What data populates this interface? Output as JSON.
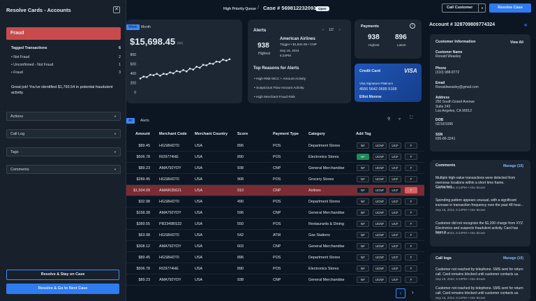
{
  "left_panel": {
    "title": "Resolve Cards - Accounts",
    "disposition": "Fraud",
    "tagged_header": "Tagged Transactions",
    "tagged_count": "6",
    "tag_rows": [
      {
        "label": "• Not Fraud",
        "count": "2"
      },
      {
        "label": "• Unconfirmed - Not Fraud",
        "count": "1"
      },
      {
        "label": "• Fraud",
        "count": "3"
      }
    ],
    "note": "Great job! You've identified $1,793.54 in potential fraudulent activity.",
    "dropdowns": [
      "Actions",
      "Call Log",
      "Tags",
      "Comments"
    ],
    "btn_stay": "Resolve & Stay on Case",
    "btn_next": "Resolve & Go to Next Case"
  },
  "header": {
    "queue": "High Priority Queue",
    "sep": "/",
    "case": "Case # 569812232093",
    "status": "Open",
    "call_customer": "Call Customer",
    "resolve_case": "Resolve Case"
  },
  "spend": {
    "tab_week": "Week",
    "tab_month": "Month",
    "amount": "$15,698.45",
    "count": "(54)"
  },
  "chart_data": {
    "type": "line",
    "title": "",
    "xlabel": "",
    "ylabel": "",
    "ylim": [
      0,
      800
    ],
    "yticks": [
      "800",
      "600",
      "400",
      "200",
      "0"
    ],
    "values": [
      290,
      330,
      320,
      370,
      360,
      390,
      350,
      390,
      380,
      420,
      400,
      450,
      430,
      470,
      440,
      500,
      480,
      540,
      520,
      580,
      570,
      610,
      600,
      650,
      640,
      690,
      670,
      700
    ]
  },
  "alerts": {
    "title": "Alerts",
    "pager": "1/2",
    "score": "938",
    "score_label": "Highest",
    "merchant": "American Airlines",
    "trigger": "Trigger  •  $1,504.09  •  CNP",
    "date": "Sep 16, 2024",
    "time": "5:24PM",
    "reasons_title": "Top Reasons for Alerts",
    "reasons": [
      "• High-Risk MCC + Amount Activity",
      "• Suspicious Flow Amount Activity",
      "• High Merchant Fraud Risk"
    ]
  },
  "payments": {
    "title": "Payments",
    "highest": "938",
    "highest_label": "Highest",
    "latest": "896",
    "latest_label": "Latest"
  },
  "credit_card": {
    "label": "Credit Card",
    "brand": "VISA",
    "product": "Visa Signature Platinum",
    "number": "4556 5642 0695 5168",
    "holder": "Elliot Monroe"
  },
  "table": {
    "tab_all": "All",
    "tab_alerts": "Alerts",
    "headers": [
      "Amount",
      "Merchant Code",
      "Merchant Country",
      "Score",
      "Payment Type",
      "Category",
      "Add Tag"
    ],
    "tags": [
      "NF",
      "UCNF",
      "UCF",
      "F"
    ],
    "rows": [
      {
        "amount": "$89.45",
        "code": "HGS8HDT0",
        "country": "USA",
        "score": "896",
        "type": "POS",
        "category": "Department Stores",
        "tag": ""
      },
      {
        "amount": "$506.78",
        "code": "RI29774HE",
        "country": "USA",
        "score": "890",
        "type": "POS",
        "category": "Electronics Stores",
        "tag": "NF"
      },
      {
        "amount": "$89.23",
        "code": "AMA792YDY",
        "country": "USA",
        "score": "938",
        "type": "CNP",
        "category": "General Merchandise",
        "tag": ""
      },
      {
        "amount": "$289.45",
        "code": "HGS8HDT0",
        "country": "USA",
        "score": "908",
        "type": "POS",
        "category": "Grocery Stores",
        "tag": ""
      },
      {
        "amount": "$1,504.09",
        "code": "AMAIR35621",
        "country": "USA",
        "score": "910",
        "type": "CNP",
        "category": "Airlines",
        "tag": "F"
      },
      {
        "amount": "$32.98",
        "code": "HGS8HDT0",
        "country": "USA",
        "score": "490",
        "type": "POS",
        "category": "Department Stores",
        "tag": ""
      },
      {
        "amount": "$158.38",
        "code": "AMA792YDY",
        "country": "USA",
        "score": "596",
        "type": "CNP",
        "category": "General Merchandise",
        "tag": ""
      },
      {
        "amount": "$389.55",
        "code": "PB2349BS32",
        "country": "USA",
        "score": "550",
        "type": "POS",
        "category": "Restaurants & Dining",
        "tag": ""
      },
      {
        "amount": "$63.98",
        "code": "HGS8HDT0",
        "country": "USA",
        "score": "542",
        "type": "ATM",
        "category": "Gas Stations",
        "tag": ""
      },
      {
        "amount": "$308.12",
        "code": "AMA792YDY",
        "country": "USA",
        "score": "603",
        "type": "CNP",
        "category": "General Merchandise",
        "tag": ""
      },
      {
        "amount": "$89.45",
        "code": "HGS8HDT0",
        "country": "USA",
        "score": "896",
        "type": "POS",
        "category": "Department Stores",
        "tag": ""
      },
      {
        "amount": "$506.78",
        "code": "RI29774HE",
        "country": "USA",
        "score": "890",
        "type": "POS",
        "category": "Electronics Stores",
        "tag": ""
      },
      {
        "amount": "$89.23",
        "code": "AMA792YDY",
        "country": "USA",
        "score": "938",
        "type": "CNP",
        "category": "General Merchandise",
        "tag": ""
      }
    ]
  },
  "account": {
    "title": "Account # 328709809774324",
    "info_title": "Customer Information",
    "view_all": "View All",
    "fields": [
      {
        "label": "Customer Name",
        "value": "Ronald Weasley"
      },
      {
        "label": "Phone",
        "value": "(310) 988-8772"
      },
      {
        "label": "Email",
        "value": "Ronaldweasley@gmail.com"
      },
      {
        "label": "Address",
        "value": "250 South Grand Avenue\nSuite 243\nLos Angeles, CA 90012"
      },
      {
        "label": "DOB",
        "value": "02/16/1996"
      },
      {
        "label": "SSN",
        "value": "695-86-3241"
      }
    ]
  },
  "comments": {
    "title": "Comments",
    "manage": "Manage (10)",
    "items": [
      {
        "text": "Multiple high-value transactions were detected from overseas locations within a short time frame. Contacted...",
        "meta": "Sep 16, 2024, 5:24PM  •  Alex Brown"
      },
      {
        "text": "Spending pattern appears unusual, with a significant increase in transaction frequency over the past 48 hour...",
        "meta": "Sep 16, 2024, 5:24PM  •  Alex Brown"
      },
      {
        "text": "Customer did not recognize the $1,200 charge from XYZ Electronics and suspects fraudulent activity. Card has been b...",
        "meta": "Sep 16, 2024, 5:24PM  •  Alex Brown"
      }
    ]
  },
  "call_logs": {
    "title": "Call logs",
    "manage": "Manage (10)",
    "items": [
      {
        "text": "Customer not reached by telephone. SMS sent for return call. Card remains blocked until customer contacts us.",
        "meta": "Sep 16, 2024, 5:24PM  •  Alex Brown"
      },
      {
        "text": "Customer not reached by telephone. SMS sent for return call. Card remains blocked until customer contacts us.",
        "meta": "Sep 16, 2024, 5:24PM  •  Alex Brown"
      }
    ]
  }
}
